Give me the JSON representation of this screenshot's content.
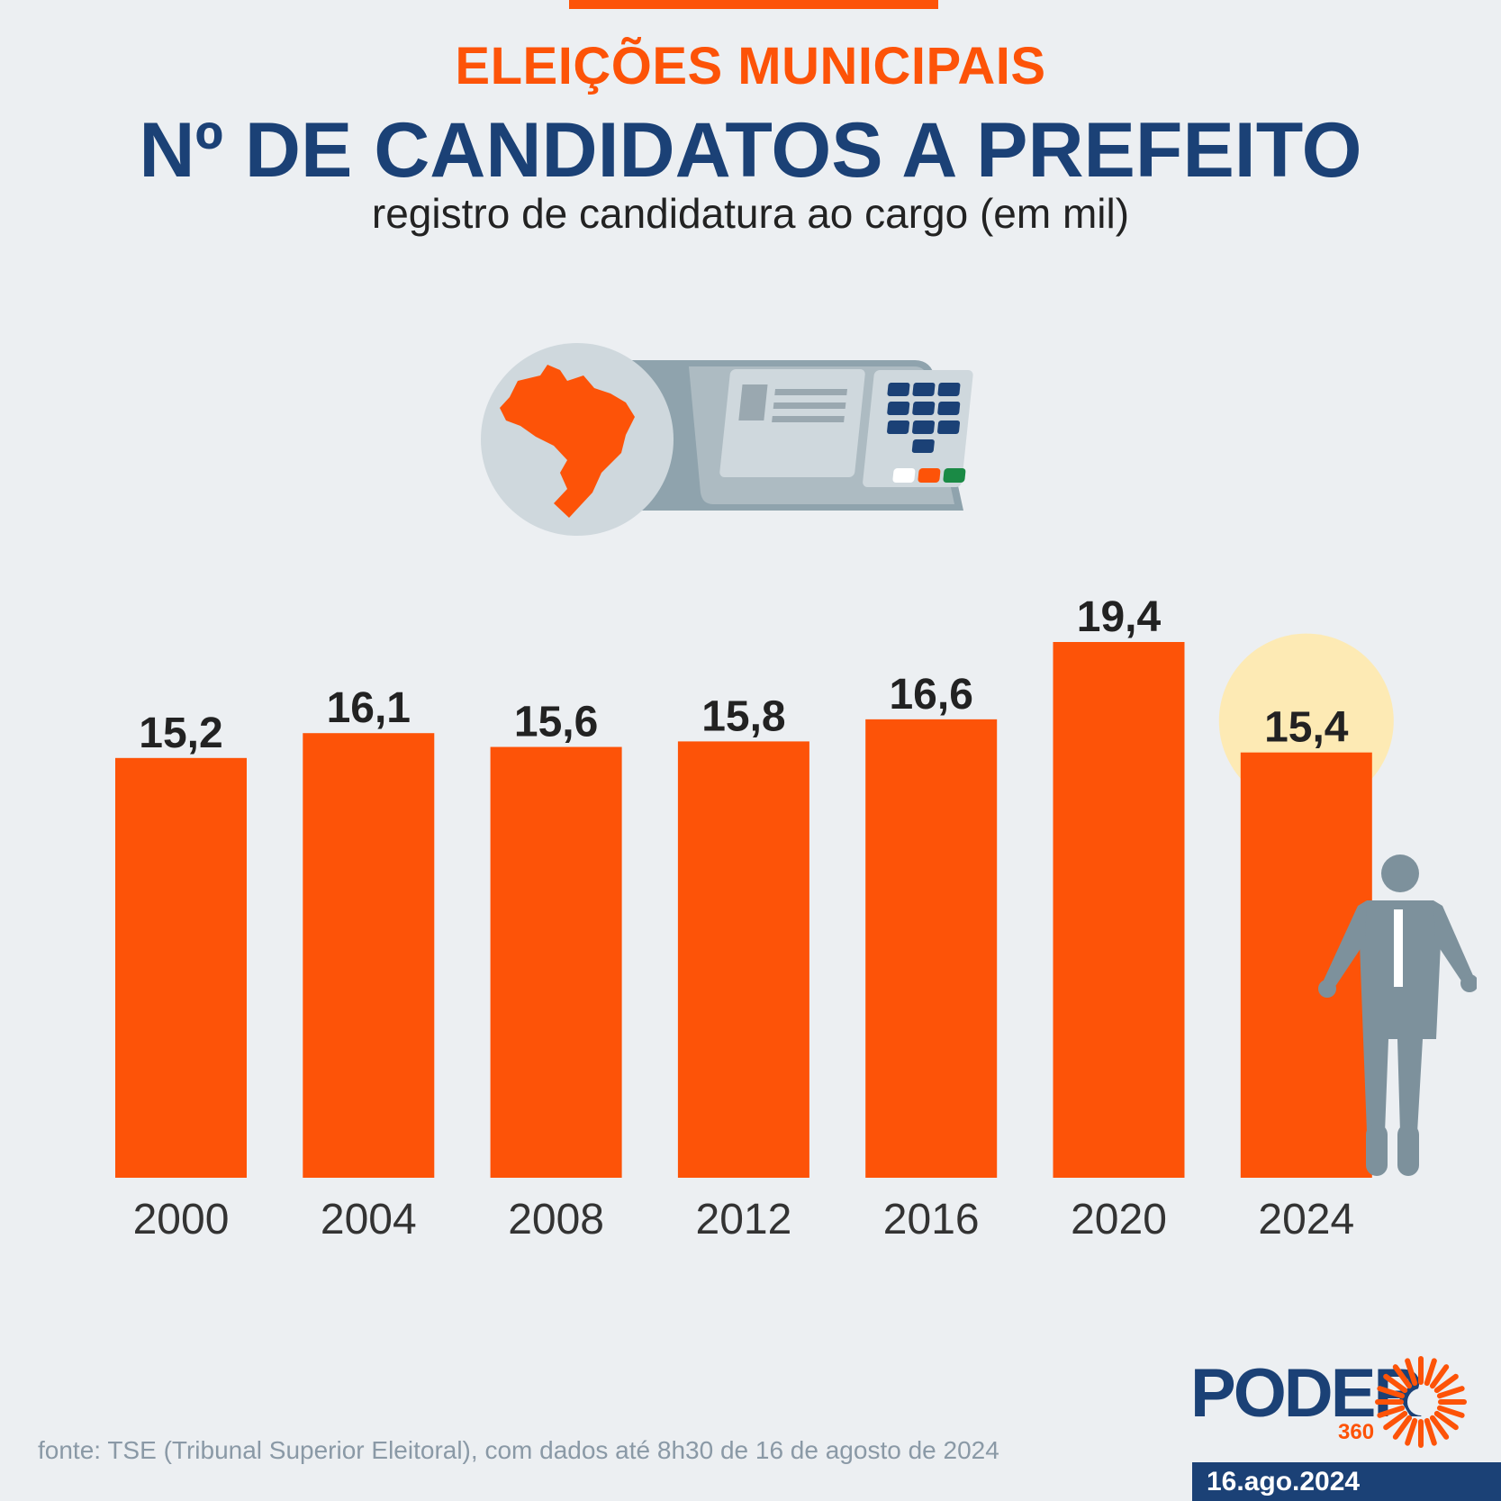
{
  "header": {
    "kicker": "ELEIÇÕES MUNICIPAIS",
    "title": "Nº DE CANDIDATOS A PREFEITO",
    "subtitle": "registro de candidatura ao cargo (em mil)"
  },
  "colors": {
    "bar": "#fd5308",
    "highlight": "#fdeab4",
    "title": "#1b4176",
    "figure": "#7d919c"
  },
  "chart_data": {
    "type": "bar",
    "title": "Nº DE CANDIDATOS A PREFEITO",
    "subtitle": "registro de candidatura ao cargo (em mil)",
    "categories": [
      "2000",
      "2004",
      "2008",
      "2012",
      "2016",
      "2020",
      "2024"
    ],
    "values": [
      15.2,
      16.1,
      15.6,
      15.8,
      16.6,
      19.4,
      15.4
    ],
    "value_labels": [
      "15,2",
      "16,1",
      "15,6",
      "15,8",
      "16,6",
      "19,4",
      "15,4"
    ],
    "highlight_index": 6,
    "xlabel": "",
    "ylabel": "",
    "ylim": [
      0,
      19.4
    ],
    "grid": false
  },
  "footer": {
    "source": "fonte: TSE (Tribunal Superior Eleitoral), com dados até 8h30 de 16 de agosto de 2024",
    "brand": "PODER",
    "brand_number": "360",
    "date": "16.ago.2024"
  }
}
